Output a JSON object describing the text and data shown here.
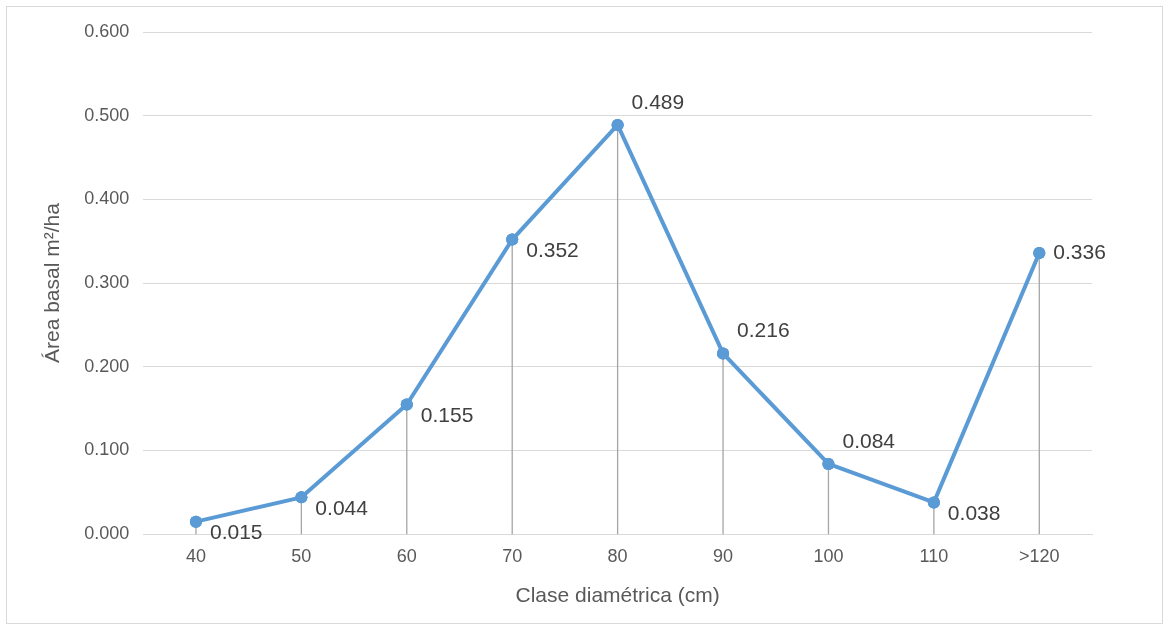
{
  "chart_data": {
    "type": "line",
    "xlabel": "Clase diamétrica (cm)",
    "ylabel": "Área basal m²/ha",
    "categories": [
      "40",
      "50",
      "60",
      "70",
      "80",
      "90",
      "100",
      "110",
      ">120"
    ],
    "series": [
      {
        "color": "#5b9bd5",
        "values": [
          0.015,
          0.044,
          0.155,
          0.352,
          0.489,
          0.216,
          0.084,
          0.038,
          0.336
        ],
        "value_labels": [
          "0.015",
          "0.044",
          "0.155",
          "0.352",
          "0.489",
          "0.216",
          "0.084",
          "0.038",
          "0.336"
        ]
      },
      {
        "type": "lollipop",
        "color": "#5b9bd5",
        "values": [
          0.015,
          0.044,
          0.155,
          0.352,
          0.489,
          0.216,
          0.084,
          0.038,
          0.336
        ]
      }
    ],
    "ylim": [
      0,
      0.6
    ],
    "yticks": [
      {
        "value": 0,
        "label": "0.000"
      },
      {
        "value": 0.1,
        "label": "0.100"
      },
      {
        "value": 0.2,
        "label": "0.200"
      },
      {
        "value": 0.3,
        "label": "0.300"
      },
      {
        "value": 0.4,
        "label": "0.400"
      },
      {
        "value": 0.5,
        "label": "0.500"
      },
      {
        "value": 0.6,
        "label": "0.600"
      }
    ],
    "grid": "y",
    "legend": false,
    "marker": "circle",
    "line_style": "solid"
  }
}
